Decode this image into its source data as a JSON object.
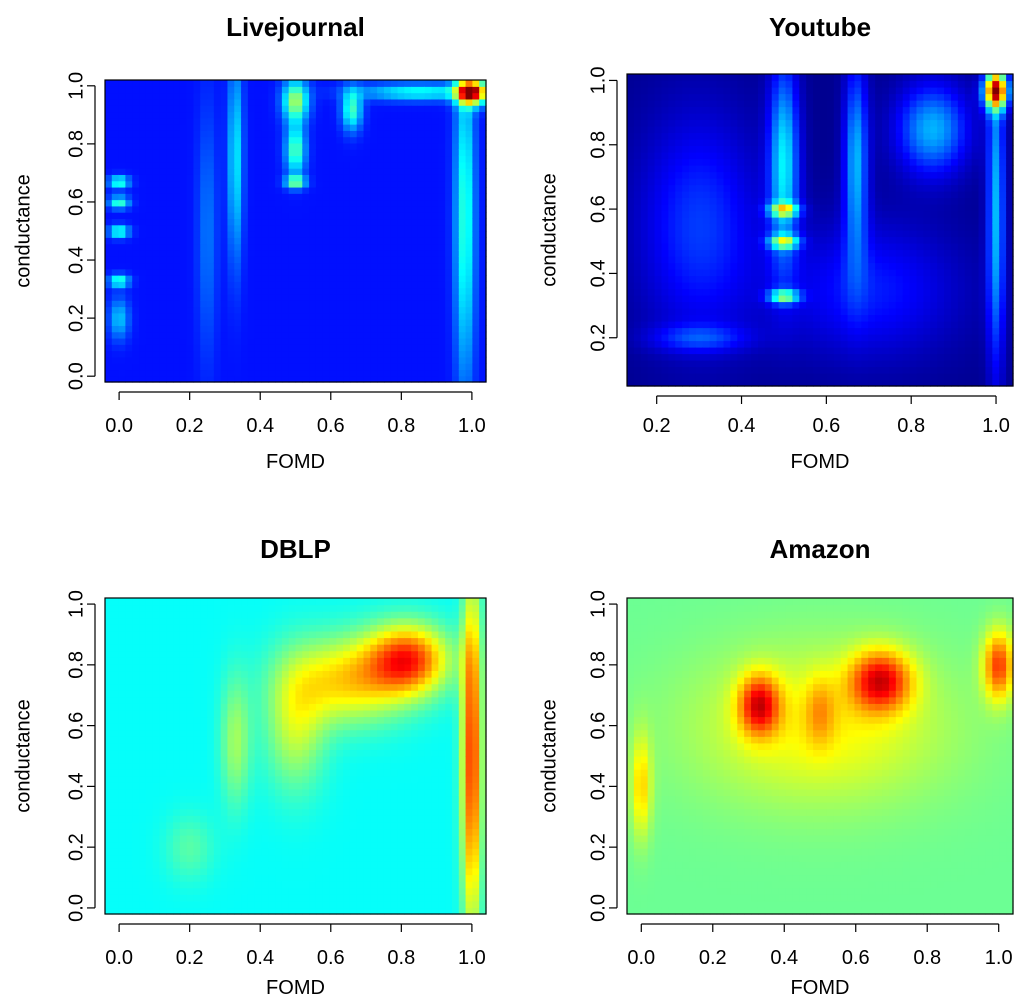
{
  "colors": {
    "palette": [
      "#00008f",
      "#0000ff",
      "#0080ff",
      "#00ffff",
      "#80ff80",
      "#ffff00",
      "#ff8000",
      "#ff0000",
      "#800000"
    ],
    "background": "#ffffff"
  },
  "chart_data": [
    {
      "type": "heatmap",
      "title": "Livejournal",
      "xlabel": "FOMD",
      "ylabel": "conductance",
      "xlim": [
        -0.04,
        1.04
      ],
      "ylim": [
        -0.02,
        1.02
      ],
      "x_ticks": [
        "0.0",
        "0.2",
        "0.4",
        "0.6",
        "0.8",
        "1.0"
      ],
      "y_ticks": [
        "0.0",
        "0.2",
        "0.4",
        "0.6",
        "0.8",
        "1.0"
      ],
      "grid": false,
      "base_density": 0.14,
      "density_peaks": [
        {
          "x": 1.0,
          "y": 0.98,
          "sx": 0.03,
          "sy": 0.03,
          "weight": 0.75
        },
        {
          "x": 0.98,
          "y": 0.55,
          "sx": 0.02,
          "sy": 0.4,
          "weight": 0.28
        },
        {
          "x": 0.85,
          "y": 0.98,
          "sx": 0.12,
          "sy": 0.02,
          "weight": 0.25
        },
        {
          "x": 0.5,
          "y": 0.95,
          "sx": 0.025,
          "sy": 0.05,
          "weight": 0.4
        },
        {
          "x": 0.5,
          "y": 0.78,
          "sx": 0.02,
          "sy": 0.06,
          "weight": 0.32
        },
        {
          "x": 0.5,
          "y": 0.67,
          "sx": 0.02,
          "sy": 0.015,
          "weight": 0.35
        },
        {
          "x": 0.66,
          "y": 0.92,
          "sx": 0.02,
          "sy": 0.05,
          "weight": 0.3
        },
        {
          "x": 0.33,
          "y": 0.75,
          "sx": 0.015,
          "sy": 0.25,
          "weight": 0.22
        },
        {
          "x": 0.0,
          "y": 0.67,
          "sx": 0.02,
          "sy": 0.015,
          "weight": 0.3
        },
        {
          "x": 0.0,
          "y": 0.6,
          "sx": 0.02,
          "sy": 0.015,
          "weight": 0.3
        },
        {
          "x": 0.0,
          "y": 0.5,
          "sx": 0.02,
          "sy": 0.015,
          "weight": 0.3
        },
        {
          "x": 0.0,
          "y": 0.33,
          "sx": 0.02,
          "sy": 0.015,
          "weight": 0.3
        },
        {
          "x": 0.0,
          "y": 0.2,
          "sx": 0.02,
          "sy": 0.05,
          "weight": 0.18
        },
        {
          "x": 0.25,
          "y": 0.5,
          "sx": 0.02,
          "sy": 0.3,
          "weight": 0.1
        }
      ]
    },
    {
      "type": "heatmap",
      "title": "Youtube",
      "xlabel": "FOMD",
      "ylabel": "conductance",
      "xlim": [
        0.13,
        1.04
      ],
      "ylim": [
        0.05,
        1.02
      ],
      "x_ticks": [
        "0.2",
        "0.4",
        "0.6",
        "0.8",
        "1.0"
      ],
      "y_ticks": [
        "0.2",
        "0.4",
        "0.6",
        "0.8",
        "1.0"
      ],
      "grid": false,
      "base_density": 0.0,
      "density_peaks": [
        {
          "x": 1.0,
          "y": 0.97,
          "sx": 0.02,
          "sy": 0.04,
          "weight": 0.85
        },
        {
          "x": 1.0,
          "y": 0.6,
          "sx": 0.015,
          "sy": 0.35,
          "weight": 0.3
        },
        {
          "x": 0.5,
          "y": 0.75,
          "sx": 0.025,
          "sy": 0.22,
          "weight": 0.35
        },
        {
          "x": 0.5,
          "y": 0.6,
          "sx": 0.025,
          "sy": 0.015,
          "weight": 0.4
        },
        {
          "x": 0.5,
          "y": 0.5,
          "sx": 0.025,
          "sy": 0.015,
          "weight": 0.4
        },
        {
          "x": 0.5,
          "y": 0.33,
          "sx": 0.025,
          "sy": 0.015,
          "weight": 0.42
        },
        {
          "x": 0.67,
          "y": 0.75,
          "sx": 0.02,
          "sy": 0.22,
          "weight": 0.3
        },
        {
          "x": 0.85,
          "y": 0.85,
          "sx": 0.06,
          "sy": 0.1,
          "weight": 0.3
        },
        {
          "x": 0.3,
          "y": 0.55,
          "sx": 0.1,
          "sy": 0.25,
          "weight": 0.18
        },
        {
          "x": 0.7,
          "y": 0.35,
          "sx": 0.15,
          "sy": 0.15,
          "weight": 0.15
        },
        {
          "x": 0.3,
          "y": 0.2,
          "sx": 0.08,
          "sy": 0.03,
          "weight": 0.15
        }
      ]
    },
    {
      "type": "heatmap",
      "title": "DBLP",
      "xlabel": "FOMD",
      "ylabel": "conductance",
      "xlim": [
        -0.04,
        1.04
      ],
      "ylim": [
        -0.02,
        1.02
      ],
      "x_ticks": [
        "0.0",
        "0.2",
        "0.4",
        "0.6",
        "0.8",
        "1.0"
      ],
      "y_ticks": [
        "0.0",
        "0.2",
        "0.4",
        "0.6",
        "0.8",
        "1.0"
      ],
      "grid": false,
      "base_density": 0.38,
      "density_peaks": [
        {
          "x": 0.82,
          "y": 0.82,
          "sx": 0.08,
          "sy": 0.08,
          "weight": 0.42
        },
        {
          "x": 0.65,
          "y": 0.75,
          "sx": 0.12,
          "sy": 0.1,
          "weight": 0.28
        },
        {
          "x": 1.0,
          "y": 0.5,
          "sx": 0.02,
          "sy": 0.4,
          "weight": 0.45
        },
        {
          "x": 0.5,
          "y": 0.6,
          "sx": 0.06,
          "sy": 0.15,
          "weight": 0.18
        },
        {
          "x": 0.33,
          "y": 0.55,
          "sx": 0.03,
          "sy": 0.15,
          "weight": 0.15
        },
        {
          "x": 0.2,
          "y": 0.2,
          "sx": 0.05,
          "sy": 0.08,
          "weight": 0.08
        }
      ]
    },
    {
      "type": "heatmap",
      "title": "Amazon",
      "xlabel": "FOMD",
      "ylabel": "conductance",
      "xlim": [
        -0.04,
        1.04
      ],
      "ylim": [
        -0.02,
        1.02
      ],
      "x_ticks": [
        "0.0",
        "0.2",
        "0.4",
        "0.6",
        "0.8",
        "1.0"
      ],
      "y_ticks": [
        "0.0",
        "0.2",
        "0.4",
        "0.6",
        "0.8",
        "1.0"
      ],
      "grid": false,
      "base_density": 0.48,
      "density_peaks": [
        {
          "x": 0.33,
          "y": 0.67,
          "sx": 0.04,
          "sy": 0.07,
          "weight": 0.35
        },
        {
          "x": 0.67,
          "y": 0.75,
          "sx": 0.06,
          "sy": 0.07,
          "weight": 0.37
        },
        {
          "x": 1.0,
          "y": 0.8,
          "sx": 0.03,
          "sy": 0.08,
          "weight": 0.33
        },
        {
          "x": 0.5,
          "y": 0.6,
          "sx": 0.25,
          "sy": 0.18,
          "weight": 0.15
        },
        {
          "x": 0.0,
          "y": 0.4,
          "sx": 0.02,
          "sy": 0.12,
          "weight": 0.18
        },
        {
          "x": 0.5,
          "y": 0.65,
          "sx": 0.03,
          "sy": 0.08,
          "weight": 0.12
        }
      ]
    }
  ]
}
